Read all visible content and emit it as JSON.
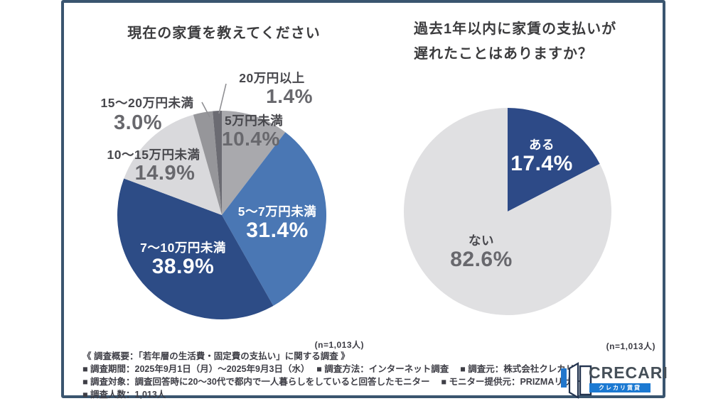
{
  "chart_data": [
    {
      "type": "pie",
      "title": "現在の家賃を教えてください",
      "n_label": "(n=1,013人)",
      "start_angle_deg": 0,
      "direction": "clockwise",
      "slices": [
        {
          "label": "5万円未満",
          "value": 10.4,
          "pct_text": "10.4%",
          "color": "#a9a9ad"
        },
        {
          "label": "5〜7万円未満",
          "value": 31.4,
          "pct_text": "31.4%",
          "color": "#4a77b4"
        },
        {
          "label": "7〜10万円未満",
          "value": 38.9,
          "pct_text": "38.9%",
          "color": "#2d4c86"
        },
        {
          "label": "10〜15万円未満",
          "value": 14.9,
          "pct_text": "14.9%",
          "color": "#d9d9dc"
        },
        {
          "label": "15〜20万円未満",
          "value": 3.0,
          "pct_text": "3.0%",
          "color": "#96969a"
        },
        {
          "label": "20万円以上",
          "value": 1.4,
          "pct_text": "1.4%",
          "color": "#6b6b72"
        }
      ]
    },
    {
      "type": "pie",
      "title": "過去1年以内に家賃の支払いが遅れたことはありますか？",
      "title_lines": [
        "過去1年以内に家賃の支払いが",
        "遅れたことはありますか？"
      ],
      "n_label": "(n=1,013人)",
      "start_angle_deg": 0,
      "direction": "clockwise",
      "slices": [
        {
          "label": "ある",
          "value": 17.4,
          "pct_text": "17.4%",
          "color": "#2d4a87"
        },
        {
          "label": "ない",
          "value": 82.6,
          "pct_text": "82.6%",
          "color": "#e0e0e2"
        }
      ]
    }
  ],
  "footer": {
    "lines": [
      "《 調査概要：「若年層の生活費・固定費の支払い」に関する調査 》",
      "■ 調査期間：2025年9月1日（月）〜2025年9月3日（水）　 ■ 調査方法：インターネット調査　 ■ 調査元：株式会社クレカリ",
      "■ 調査対象：調査回答時に20〜30代で都内で一人暮らしをしていると回答したモニター　 ■ モニター提供元：PRIZMAリサーチ",
      "■ 調査人数：1,013人"
    ]
  },
  "logo": {
    "name": "CRECARI",
    "subtitle": "クレカリ賃貸",
    "accent_blue": "#1b79d2",
    "dark": "#454f58"
  },
  "frame_color": "#3a556f"
}
